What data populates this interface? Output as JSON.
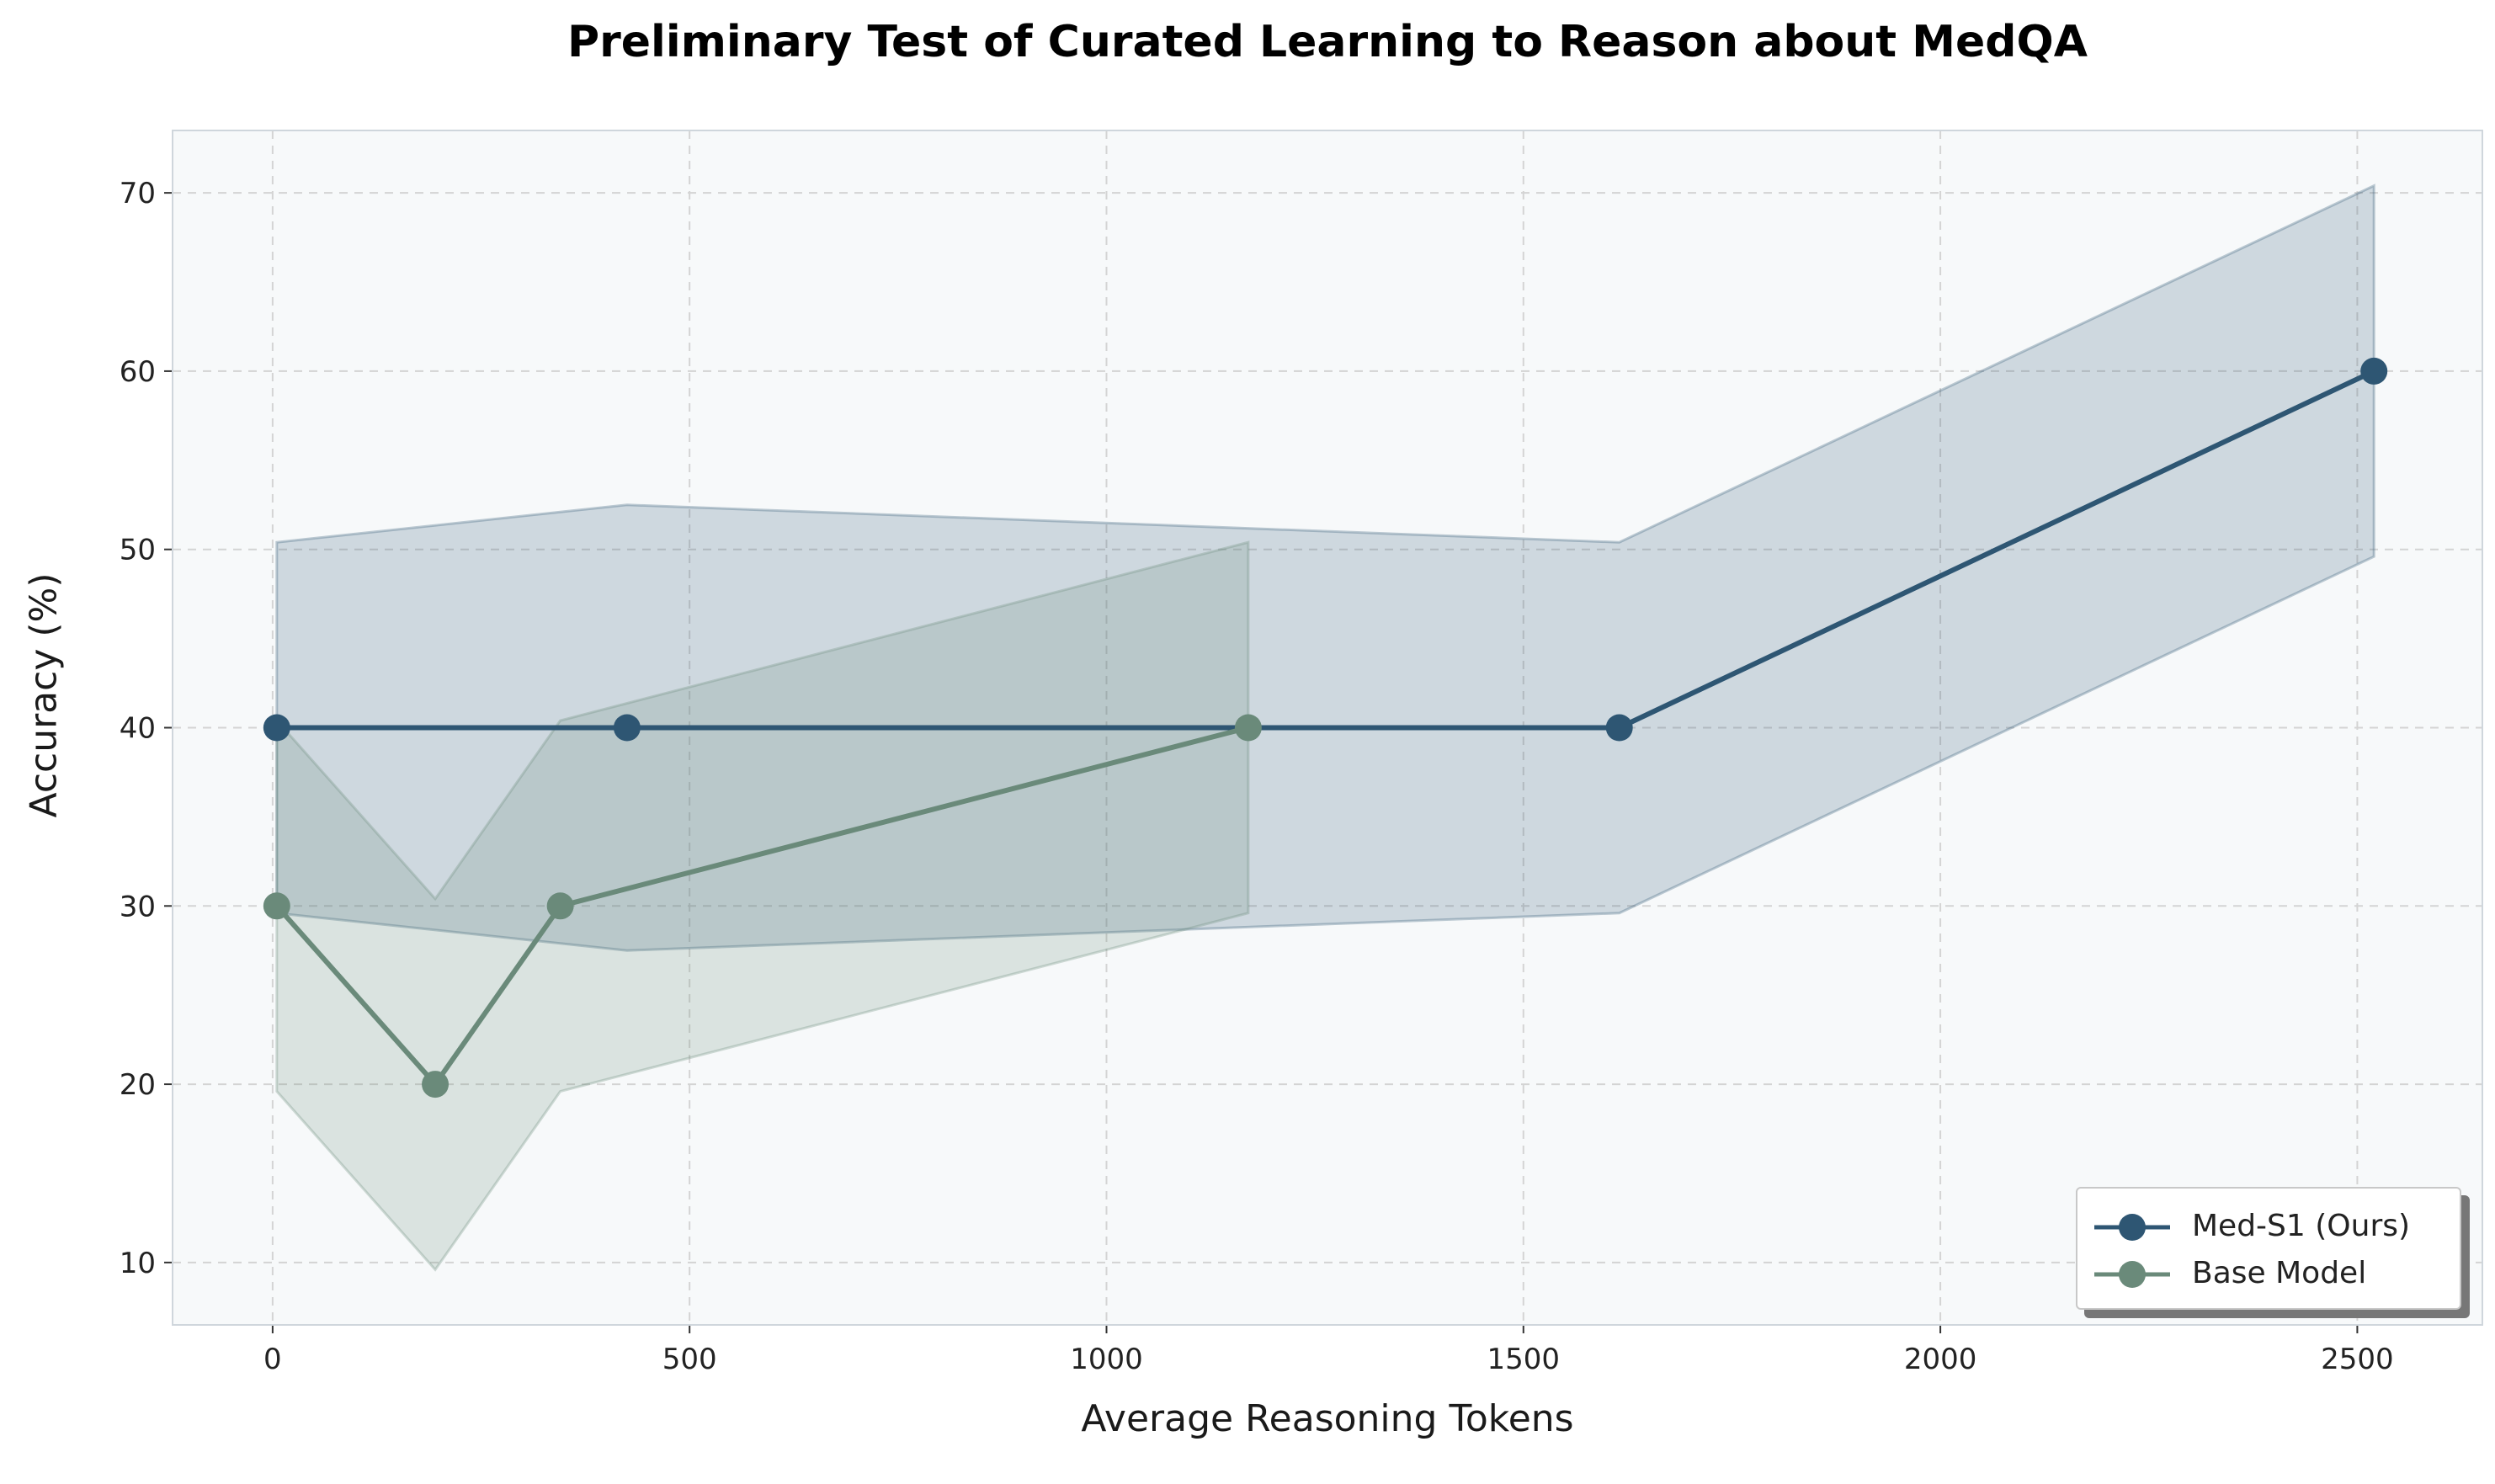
{
  "chart_data": {
    "type": "line",
    "title": "Preliminary Test of Curated Learning to Reason about MedQA",
    "xlabel": "Average Reasoning Tokens",
    "ylabel": "Accuracy (%)",
    "xlim": [
      -120,
      2650
    ],
    "ylim": [
      6.5,
      73.5
    ],
    "xticks": [
      0,
      500,
      1000,
      1500,
      2000,
      2500
    ],
    "yticks": [
      10,
      20,
      30,
      40,
      50,
      60,
      70
    ],
    "xtick_labels": [
      "0",
      "500",
      "1000",
      "1500",
      "2000",
      "2500"
    ],
    "ytick_labels": [
      "10",
      "20",
      "30",
      "40",
      "50",
      "60",
      "70"
    ],
    "grid": true,
    "legend_position": "lower-right",
    "series": [
      {
        "name": "Med-S1 (Ours)",
        "color": "#2e5673",
        "x": [
          5,
          425,
          1615,
          2520
        ],
        "y": [
          40,
          40,
          40,
          60
        ],
        "band_lower": [
          29.6,
          27.5,
          29.6,
          49.6
        ],
        "band_upper": [
          50.4,
          52.5,
          50.4,
          70.4
        ]
      },
      {
        "name": "Base Model",
        "color": "#6a8a7a",
        "x": [
          5,
          195,
          345,
          1170
        ],
        "y": [
          30,
          20,
          30,
          40
        ],
        "band_lower": [
          19.6,
          9.6,
          19.6,
          29.6
        ],
        "band_upper": [
          40.4,
          30.4,
          40.4,
          50.4
        ]
      }
    ]
  }
}
